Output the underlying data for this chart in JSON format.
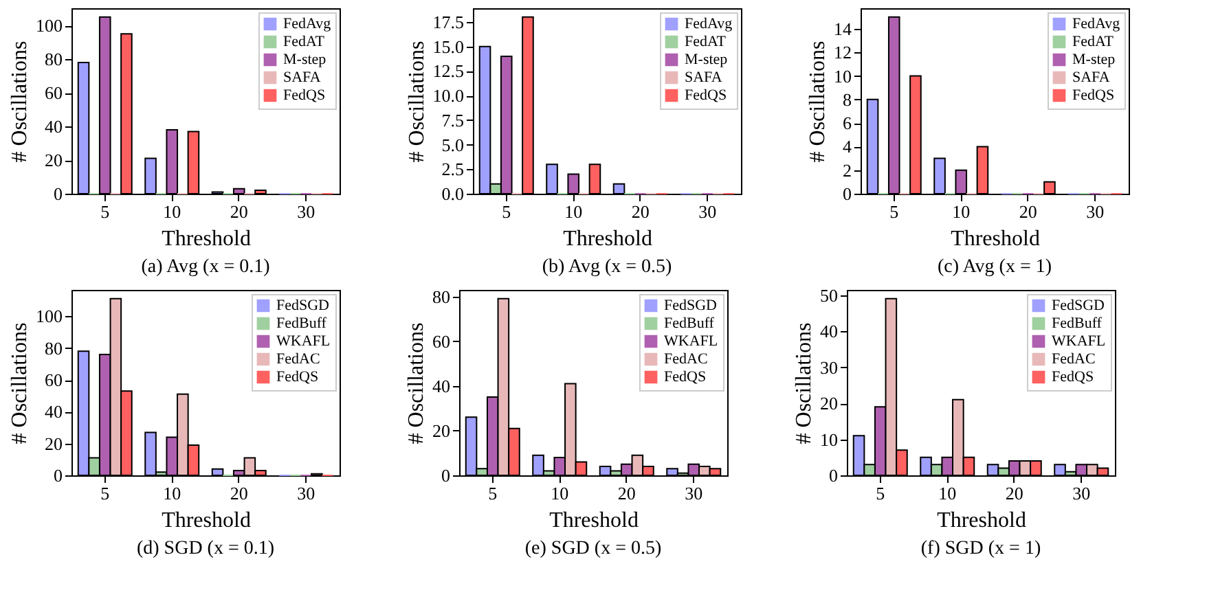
{
  "chart_data": [
    {
      "type": "bar",
      "title": "(a) Avg (x = 0.1)",
      "xlabel": "Threshold",
      "ylabel": "# Oscillations",
      "categories": [
        "5",
        "10",
        "20",
        "30"
      ],
      "ylim": [
        0,
        110.25
      ],
      "yticks": [
        0,
        20,
        40,
        60,
        80,
        100
      ],
      "legend": "top right",
      "series": [
        {
          "name": "FedAvg",
          "color": "#a0a0ff",
          "values": [
            78,
            21,
            1,
            0
          ]
        },
        {
          "name": "FedAT",
          "color": "#a0d0a0",
          "values": [
            0,
            0,
            0,
            0
          ]
        },
        {
          "name": "M-step",
          "color": "#b060b0",
          "values": [
            105,
            38,
            3,
            0
          ]
        },
        {
          "name": "SAFA",
          "color": "#e8b8b8",
          "values": [
            0,
            0,
            0,
            0
          ]
        },
        {
          "name": "FedQS",
          "color": "#ff6060",
          "values": [
            95,
            37,
            2,
            0
          ]
        }
      ]
    },
    {
      "type": "bar",
      "title": "(b) Avg (x = 0.5)",
      "xlabel": "Threshold",
      "ylabel": "# Oscillations",
      "categories": [
        "5",
        "10",
        "20",
        "30"
      ],
      "ylim": [
        0,
        18.9
      ],
      "yticks": [
        {
          "value": 0,
          "label": "0.0"
        },
        {
          "value": 2.5,
          "label": "2.5"
        },
        {
          "value": 5,
          "label": "5.0"
        },
        {
          "value": 7.5,
          "label": "7.5"
        },
        {
          "value": 10,
          "label": "10.0"
        },
        {
          "value": 12.5,
          "label": "12.5"
        },
        {
          "value": 15,
          "label": "15.0"
        },
        {
          "value": 17.5,
          "label": "17.5"
        }
      ],
      "legend": "top right",
      "series": [
        {
          "name": "FedAvg",
          "color": "#a0a0ff",
          "values": [
            15,
            3,
            1,
            0
          ]
        },
        {
          "name": "FedAT",
          "color": "#a0d0a0",
          "values": [
            1,
            0,
            0,
            0
          ]
        },
        {
          "name": "M-step",
          "color": "#b060b0",
          "values": [
            14,
            2,
            0,
            0
          ]
        },
        {
          "name": "SAFA",
          "color": "#e8b8b8",
          "values": [
            0,
            0,
            0,
            0
          ]
        },
        {
          "name": "FedQS",
          "color": "#ff6060",
          "values": [
            18,
            3,
            0,
            0
          ]
        }
      ]
    },
    {
      "type": "bar",
      "title": "(c) Avg (x = 1)",
      "xlabel": "Threshold",
      "ylabel": "# Oscillations",
      "categories": [
        "5",
        "10",
        "20",
        "30"
      ],
      "ylim": [
        0,
        15.75
      ],
      "yticks": [
        0,
        2,
        4,
        6,
        8,
        10,
        12,
        14
      ],
      "legend": "top right",
      "series": [
        {
          "name": "FedAvg",
          "color": "#a0a0ff",
          "values": [
            8,
            3,
            0,
            0
          ]
        },
        {
          "name": "FedAT",
          "color": "#a0d0a0",
          "values": [
            0,
            0,
            0,
            0
          ]
        },
        {
          "name": "M-step",
          "color": "#b060b0",
          "values": [
            15,
            2,
            0,
            0
          ]
        },
        {
          "name": "SAFA",
          "color": "#e8b8b8",
          "values": [
            0,
            0,
            0,
            0
          ]
        },
        {
          "name": "FedQS",
          "color": "#ff6060",
          "values": [
            10,
            4,
            1,
            0
          ]
        }
      ]
    },
    {
      "type": "bar",
      "title": "(d) SGD (x = 0.1)",
      "xlabel": "Threshold",
      "ylabel": "# Oscillations",
      "categories": [
        "5",
        "10",
        "20",
        "30"
      ],
      "ylim": [
        0,
        116.55
      ],
      "yticks": [
        0,
        20,
        40,
        60,
        80,
        100
      ],
      "legend": "top right",
      "series": [
        {
          "name": "FedSGD",
          "color": "#a0a0ff",
          "values": [
            78,
            27,
            4,
            0
          ]
        },
        {
          "name": "FedBuff",
          "color": "#a0d0a0",
          "values": [
            11,
            2,
            0,
            0
          ]
        },
        {
          "name": "WKAFL",
          "color": "#b060b0",
          "values": [
            76,
            24,
            3,
            0
          ]
        },
        {
          "name": "FedAC",
          "color": "#e8b8b8",
          "values": [
            111,
            51,
            11,
            1
          ]
        },
        {
          "name": "FedQS",
          "color": "#ff6060",
          "values": [
            53,
            19,
            3,
            0
          ]
        }
      ]
    },
    {
      "type": "bar",
      "title": "(e) SGD (x = 0.5)",
      "xlabel": "Threshold",
      "ylabel": "# Oscillations",
      "categories": [
        "5",
        "10",
        "20",
        "30"
      ],
      "ylim": [
        0,
        82.95
      ],
      "yticks": [
        0,
        20,
        40,
        60,
        80
      ],
      "legend": "top right",
      "series": [
        {
          "name": "FedSGD",
          "color": "#a0a0ff",
          "values": [
            26,
            9,
            4,
            3
          ]
        },
        {
          "name": "FedBuff",
          "color": "#a0d0a0",
          "values": [
            3,
            2,
            2,
            1
          ]
        },
        {
          "name": "WKAFL",
          "color": "#b060b0",
          "values": [
            35,
            8,
            5,
            5
          ]
        },
        {
          "name": "FedAC",
          "color": "#e8b8b8",
          "values": [
            79,
            41,
            9,
            4
          ]
        },
        {
          "name": "FedQS",
          "color": "#ff6060",
          "values": [
            21,
            6,
            4,
            3
          ]
        }
      ]
    },
    {
      "type": "bar",
      "title": "(f) SGD (x = 1)",
      "xlabel": "Threshold",
      "ylabel": "# Oscillations",
      "categories": [
        "5",
        "10",
        "20",
        "30"
      ],
      "ylim": [
        0,
        51.45
      ],
      "yticks": [
        0,
        10,
        20,
        30,
        40,
        50
      ],
      "legend": "top right",
      "series": [
        {
          "name": "FedSGD",
          "color": "#a0a0ff",
          "values": [
            11,
            5,
            3,
            3
          ]
        },
        {
          "name": "FedBuff",
          "color": "#a0d0a0",
          "values": [
            3,
            3,
            2,
            1
          ]
        },
        {
          "name": "WKAFL",
          "color": "#b060b0",
          "values": [
            19,
            5,
            4,
            3
          ]
        },
        {
          "name": "FedAC",
          "color": "#e8b8b8",
          "values": [
            49,
            21,
            4,
            3
          ]
        },
        {
          "name": "FedQS",
          "color": "#ff6060",
          "values": [
            7,
            5,
            4,
            2
          ]
        }
      ]
    }
  ]
}
